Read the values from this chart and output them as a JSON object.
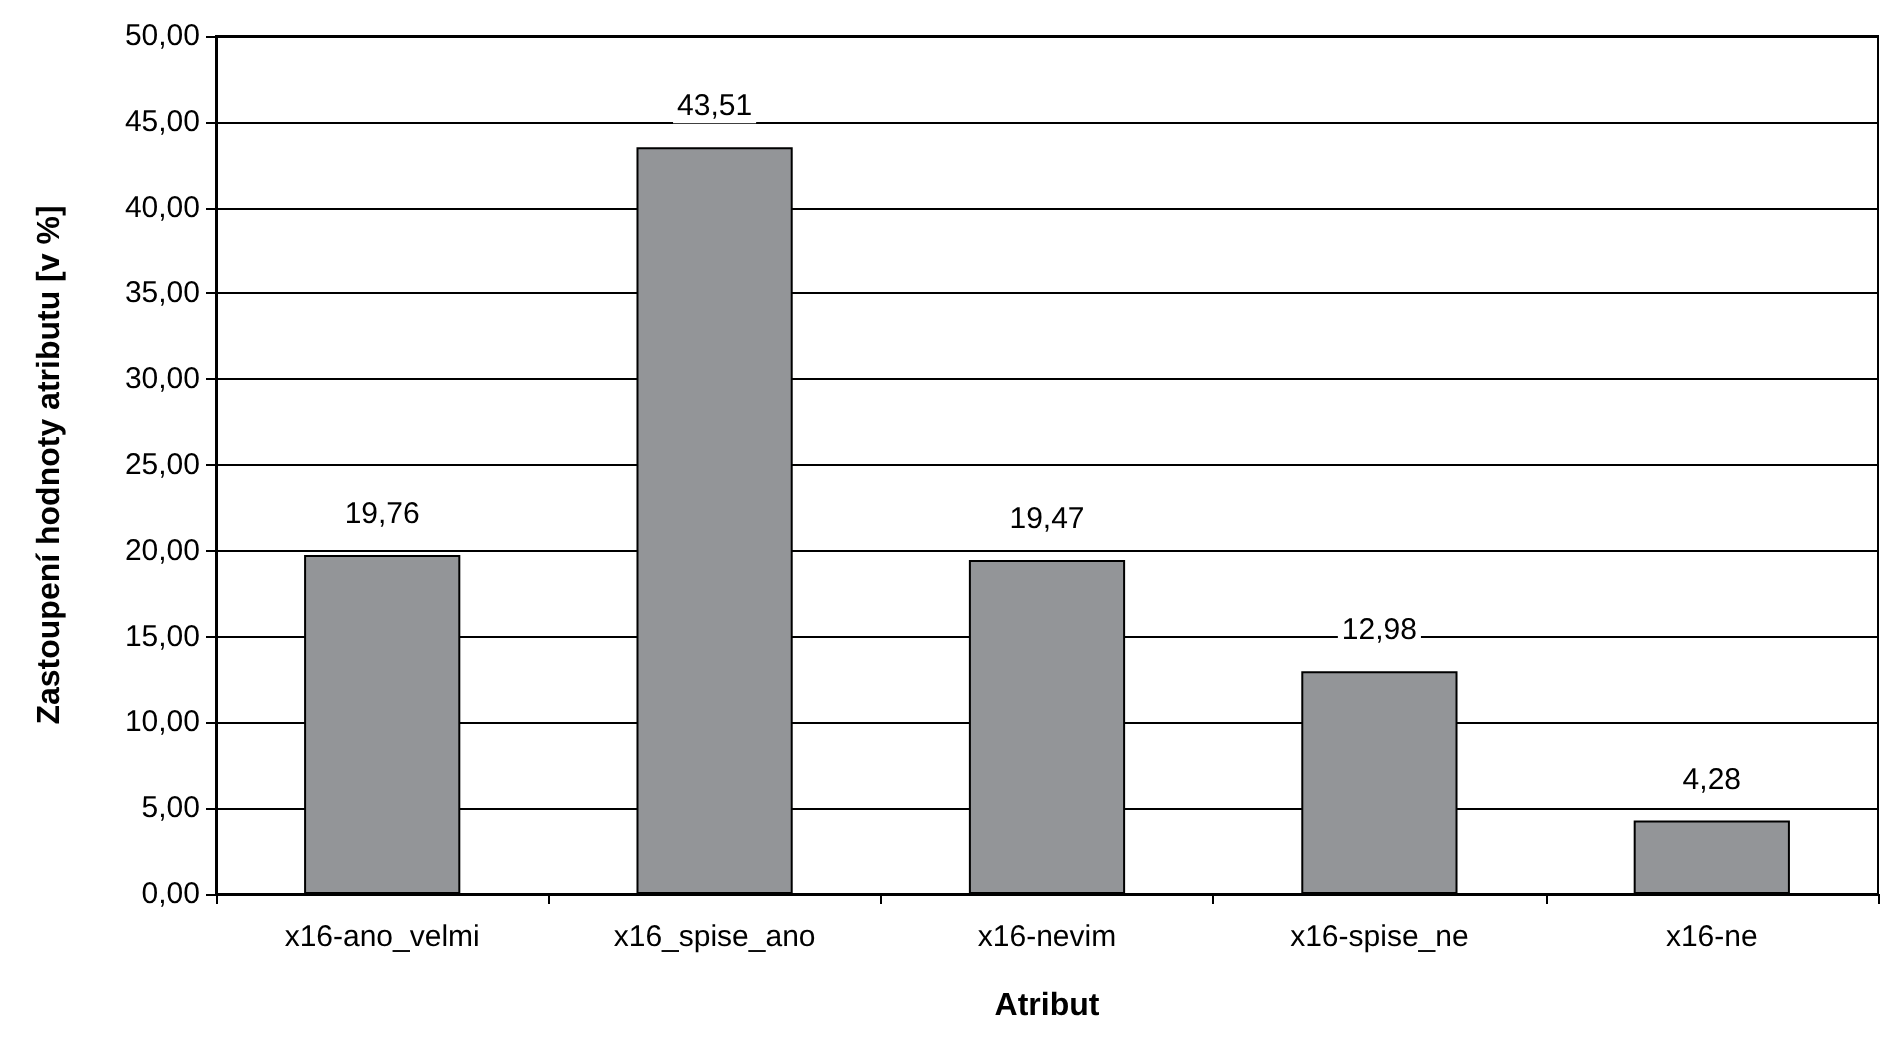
{
  "chart_data": {
    "type": "bar",
    "xlabel": "Atribut",
    "ylabel": "Zastoupení hodnoty atributu [v %]",
    "categories": [
      "x16-ano_velmi",
      "x16_spise_ano",
      "x16-nevim",
      "x16-spise_ne",
      "x16-ne"
    ],
    "values": [
      19.76,
      43.51,
      19.47,
      12.98,
      4.28
    ],
    "value_labels": [
      "19,76",
      "43,51",
      "19,47",
      "12,98",
      "4,28"
    ],
    "color": "#939598",
    "ylim": [
      0,
      50
    ],
    "yticks": [
      {
        "value": 0,
        "label": "0,00"
      },
      {
        "value": 5,
        "label": "5,00"
      },
      {
        "value": 10,
        "label": "10,00"
      },
      {
        "value": 15,
        "label": "15,00"
      },
      {
        "value": 20,
        "label": "20,00"
      },
      {
        "value": 25,
        "label": "25,00"
      },
      {
        "value": 30,
        "label": "30,00"
      },
      {
        "value": 35,
        "label": "35,00"
      },
      {
        "value": 40,
        "label": "40,00"
      },
      {
        "value": 45,
        "label": "45,00"
      },
      {
        "value": 50,
        "label": "50,00"
      }
    ],
    "grid": "y"
  }
}
